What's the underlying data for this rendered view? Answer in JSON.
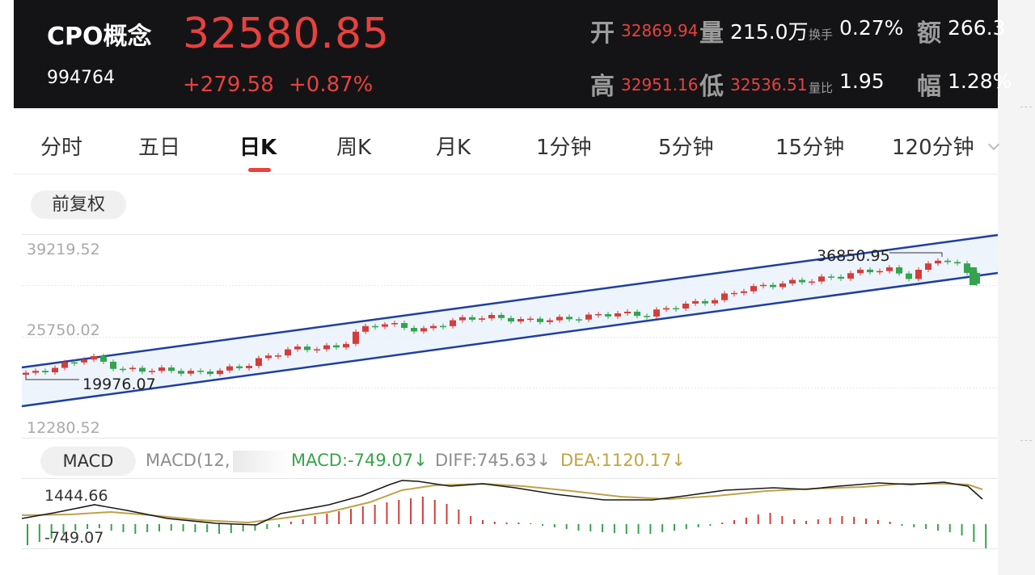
{
  "header": {
    "name": "CPO概念",
    "code": "994764",
    "last_price": "32580.85",
    "change_abs": "+279.58",
    "change_pct": "+0.87%",
    "stats": {
      "open_label": "开",
      "open_value": "32869.94",
      "volume_label": "量",
      "volume_value": "215.0万",
      "turnover_label": "换手",
      "turnover_value": "0.27%",
      "amount_label": "额",
      "amount_value": "266.3",
      "high_label": "高",
      "high_value": "32951.16",
      "low_label": "低",
      "low_value": "32536.51",
      "volratio_label": "量比",
      "volratio_value": "1.95",
      "amplitude_label": "幅",
      "amplitude_value": "1.28%"
    }
  },
  "tabs": {
    "items": [
      "分时",
      "五日",
      "日K",
      "周K",
      "月K",
      "1分钟",
      "5分钟",
      "15分钟",
      "120分钟"
    ],
    "active_index": 2
  },
  "adjust_button": "前复权",
  "chart": {
    "price_labels": [
      "39219.52",
      "25750.02",
      "12280.52"
    ],
    "annotation_high": "36850.95",
    "annotation_low": "19976.07",
    "colors": {
      "up": "#d43d3b",
      "down": "#35a34d",
      "channel": "#1f3fa0",
      "channel_fill": "#e9f1fb"
    }
  },
  "macd": {
    "tab_label": "MACD",
    "params_text": "MACD(12,",
    "macd_text": "MACD:-749.07↓",
    "diff_text": "DIFF:745.63↓",
    "dea_text": "DEA:1120.17↓",
    "max_label": "1444.66",
    "min_label": "-749.07",
    "colors": {
      "diff": "#1a1a1a",
      "dea": "#bfa24a",
      "pos": "#d43d3b",
      "neg": "#35a34d"
    }
  }
}
